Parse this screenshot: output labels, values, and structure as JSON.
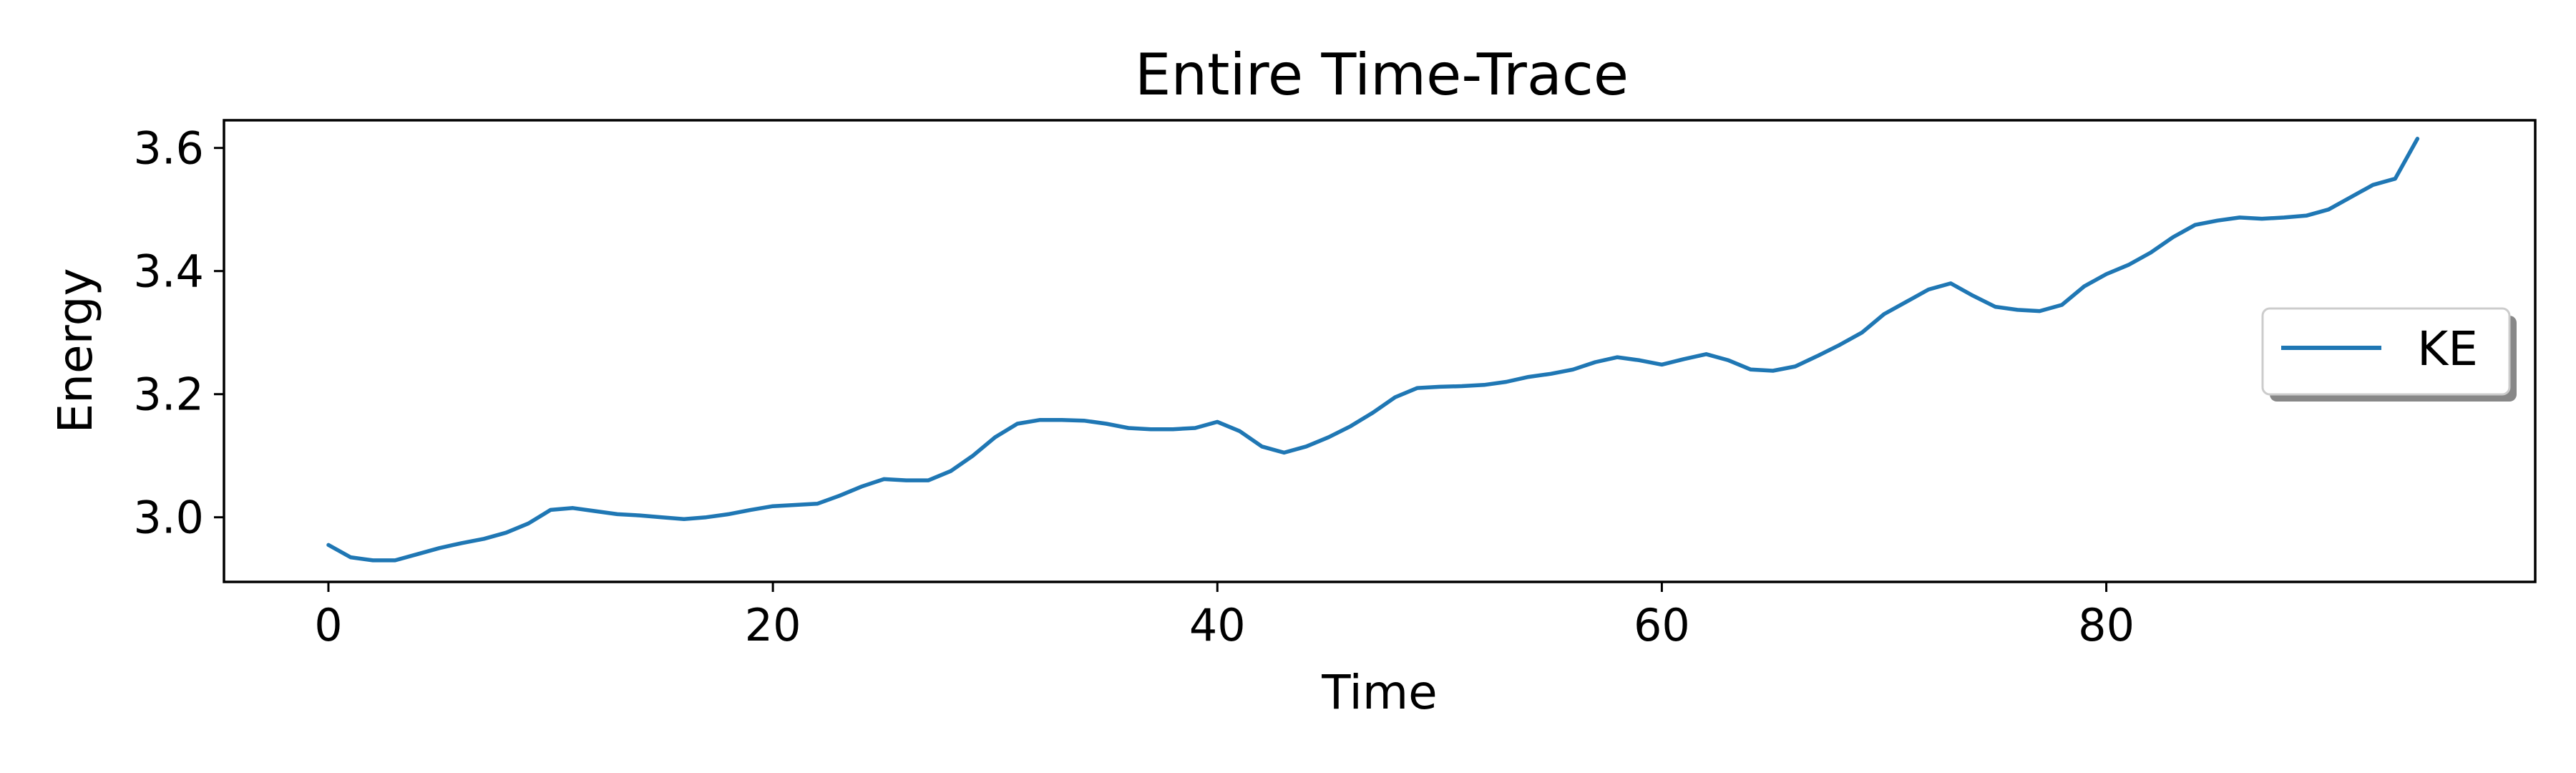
{
  "chart_data": {
    "type": "line",
    "title": "Entire Time-Trace",
    "xlabel": "Time",
    "ylabel": "Energy",
    "xlim": [
      -4.7,
      99.3
    ],
    "ylim": [
      2.895,
      3.645
    ],
    "xticks": [
      0,
      20,
      40,
      60,
      80
    ],
    "xtick_labels": [
      "0",
      "20",
      "40",
      "60",
      "80"
    ],
    "yticks": [
      3.0,
      3.2,
      3.4,
      3.6
    ],
    "ytick_labels": [
      "3.0",
      "3.2",
      "3.4",
      "3.6"
    ],
    "grid": false,
    "legend": {
      "placement": "center-right",
      "shadow": true
    },
    "series": [
      {
        "name": "KE",
        "color": "#1f77b4",
        "x": [
          0,
          1,
          2,
          3,
          4,
          5,
          6,
          7,
          8,
          9,
          10,
          11,
          12,
          13,
          14,
          15,
          16,
          17,
          18,
          19,
          20,
          21,
          22,
          23,
          24,
          25,
          26,
          27,
          28,
          29,
          30,
          31,
          32,
          33,
          34,
          35,
          36,
          37,
          38,
          39,
          40,
          41,
          42,
          43,
          44,
          45,
          46,
          47,
          48,
          49,
          50,
          51,
          52,
          53,
          54,
          55,
          56,
          57,
          58,
          59,
          60,
          61,
          62,
          63,
          64,
          65,
          66,
          67,
          68,
          69,
          70,
          71,
          72,
          73,
          74,
          75,
          76,
          77,
          78,
          79,
          80,
          81,
          82,
          83,
          84,
          85,
          86,
          87,
          88,
          89,
          90,
          91,
          92,
          93,
          94
        ],
        "y": [
          2.955,
          2.935,
          2.93,
          2.93,
          2.94,
          2.95,
          2.958,
          2.965,
          2.975,
          2.99,
          3.012,
          3.015,
          3.01,
          3.005,
          3.003,
          3.0,
          2.997,
          3.0,
          3.005,
          3.012,
          3.018,
          3.02,
          3.022,
          3.035,
          3.05,
          3.062,
          3.06,
          3.06,
          3.075,
          3.1,
          3.13,
          3.152,
          3.158,
          3.158,
          3.157,
          3.152,
          3.145,
          3.143,
          3.143,
          3.145,
          3.155,
          3.14,
          3.115,
          3.105,
          3.115,
          3.13,
          3.148,
          3.17,
          3.195,
          3.21,
          3.212,
          3.213,
          3.215,
          3.22,
          3.228,
          3.233,
          3.24,
          3.252,
          3.26,
          3.255,
          3.248,
          3.257,
          3.265,
          3.255,
          3.24,
          3.238,
          3.245,
          3.262,
          3.28,
          3.3,
          3.33,
          3.35,
          3.37,
          3.38,
          3.36,
          3.342,
          3.337,
          3.335,
          3.345,
          3.375,
          3.395,
          3.41,
          3.43,
          3.455,
          3.475,
          3.482,
          3.487,
          3.485,
          3.487,
          3.49,
          3.5,
          3.52,
          3.54,
          3.55,
          3.615
        ]
      }
    ]
  }
}
